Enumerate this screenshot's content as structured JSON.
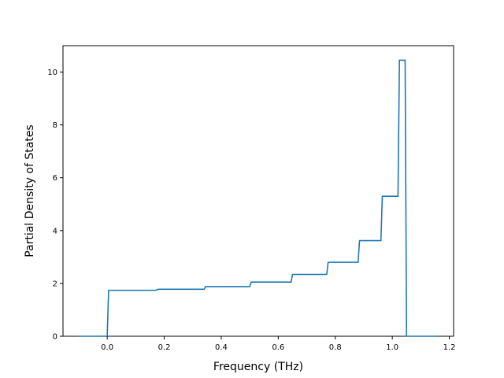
{
  "chart_data": {
    "type": "line",
    "title": "",
    "xlabel": "Frequency (THz)",
    "ylabel": "Partial Density of States",
    "xlim": [
      -0.155,
      1.215
    ],
    "ylim": [
      0,
      11
    ],
    "xticks": [
      0.0,
      0.2,
      0.4,
      0.6,
      0.8,
      1.0,
      1.2
    ],
    "xtick_labels": [
      "0.0",
      "0.2",
      "0.4",
      "0.6",
      "0.8",
      "1.0",
      "1.2"
    ],
    "yticks": [
      0,
      2,
      4,
      6,
      8,
      10
    ],
    "ytick_labels": [
      "0",
      "2",
      "4",
      "6",
      "8",
      "10"
    ],
    "grid": false,
    "series": [
      {
        "color": "#1f77b4",
        "x": [
          -0.1,
          0.0,
          0.005,
          0.17,
          0.18,
          0.34,
          0.345,
          0.5,
          0.505,
          0.645,
          0.65,
          0.77,
          0.775,
          0.88,
          0.885,
          0.96,
          0.965,
          1.02,
          1.025,
          1.045,
          1.05,
          1.155
        ],
        "y": [
          0.0,
          0.0,
          1.74,
          1.74,
          1.78,
          1.78,
          1.88,
          1.88,
          2.05,
          2.05,
          2.34,
          2.34,
          2.8,
          2.8,
          3.62,
          3.62,
          5.3,
          5.3,
          10.45,
          10.45,
          0.0,
          0.0
        ]
      }
    ]
  }
}
